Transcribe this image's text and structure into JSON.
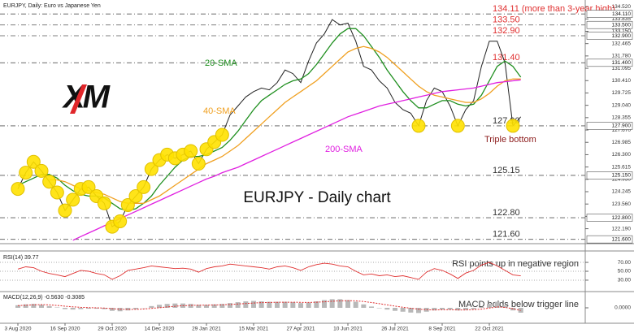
{
  "header": "EURJPY, Daily: Euro vs Japanese Yen",
  "logo": "XM",
  "chart_data": [
    {
      "type": "line",
      "title": "EURJPY - Daily chart",
      "categories": [
        "3 Aug 2020",
        null,
        null,
        null,
        null,
        null,
        "16 Sep 2020",
        null,
        null,
        null,
        null,
        null,
        "29 Oct 2020",
        null,
        null,
        null,
        null,
        null,
        "14 Dec 2020",
        null,
        null,
        null,
        null,
        null,
        "29 Jan 2021",
        null,
        null,
        null,
        null,
        null,
        "15 Mar 2021",
        null,
        null,
        null,
        null,
        null,
        "27 Apr 2021",
        null,
        null,
        null,
        null,
        null,
        "10 Jun 2021",
        null,
        null,
        null,
        null,
        null,
        "26 Jul 2021",
        null,
        null,
        null,
        null,
        null,
        "8 Sep 2021",
        null,
        null,
        null,
        null,
        null,
        "22 Oct 2021",
        null,
        null,
        null,
        null
      ],
      "series": [
        {
          "color": "#222222",
          "values": [
            124.4,
            125.3,
            125.9,
            125.4,
            124.8,
            124.2,
            123.2,
            123.8,
            124.4,
            124.5,
            124.0,
            123.6,
            122.3,
            122.6,
            123.5,
            124.0,
            124.5,
            125.5,
            126.0,
            126.3,
            126.1,
            126.3,
            126.5,
            125.8,
            126.6,
            127.0,
            127.4,
            128.5,
            129.0,
            129.5,
            129.8,
            130.0,
            129.9,
            130.3,
            131.0,
            130.8,
            130.3,
            131.5,
            132.5,
            133.0,
            133.8,
            133.5,
            133.6,
            132.6,
            131.2,
            131.0,
            130.4,
            130.0,
            129.2,
            128.8,
            128.6,
            127.9,
            129.3,
            130.0,
            129.8,
            129.0,
            127.9,
            128.8,
            129.3,
            131.2,
            132.6,
            132.6,
            131.4,
            127.9,
            128.4
          ]
        },
        {
          "name": "20-SMA",
          "color": "#1f8f1f",
          "values": [
            124.6,
            124.8,
            125.0,
            125.2,
            125.2,
            125.0,
            124.6,
            124.3,
            124.1,
            124.0,
            124.0,
            123.9,
            123.6,
            123.3,
            123.2,
            123.3,
            123.6,
            124.0,
            124.6,
            125.1,
            125.6,
            126.0,
            126.2,
            126.2,
            126.3,
            126.5,
            126.7,
            127.1,
            127.6,
            128.2,
            128.8,
            129.3,
            129.6,
            129.9,
            130.2,
            130.4,
            130.5,
            130.8,
            131.3,
            131.9,
            132.5,
            133.0,
            133.3,
            133.3,
            132.9,
            132.3,
            131.7,
            131.0,
            130.4,
            129.8,
            129.3,
            128.9,
            128.9,
            129.1,
            129.3,
            129.3,
            129.1,
            129.0,
            129.1,
            129.6,
            130.4,
            131.2,
            131.5,
            131.2,
            130.6
          ]
        },
        {
          "name": "40-SMA",
          "color": "#f0a020",
          "values": [
            null,
            null,
            null,
            null,
            124.9,
            124.9,
            124.8,
            124.6,
            124.4,
            124.3,
            124.2,
            124.1,
            123.9,
            123.7,
            123.6,
            123.6,
            123.6,
            123.8,
            124.0,
            124.3,
            124.6,
            124.9,
            125.2,
            125.5,
            125.8,
            126.0,
            126.2,
            126.5,
            126.8,
            127.2,
            127.6,
            128.0,
            128.4,
            128.8,
            129.2,
            129.5,
            129.8,
            130.1,
            130.4,
            130.8,
            131.2,
            131.6,
            132.0,
            132.2,
            132.3,
            132.2,
            132.0,
            131.7,
            131.3,
            130.9,
            130.5,
            130.1,
            129.8,
            129.6,
            129.5,
            129.4,
            129.3,
            129.2,
            129.2,
            129.4,
            129.7,
            130.1,
            130.4,
            130.5,
            130.5
          ]
        },
        {
          "name": "200-SMA",
          "color": "#e020e0",
          "values": [
            null,
            null,
            null,
            null,
            null,
            null,
            null,
            121.55,
            121.75,
            121.95,
            122.15,
            122.35,
            122.55,
            122.75,
            122.95,
            123.15,
            123.35,
            123.55,
            123.75,
            123.95,
            124.15,
            124.35,
            124.55,
            124.75,
            124.95,
            125.1,
            125.3,
            125.45,
            125.6,
            125.8,
            126.0,
            126.2,
            126.4,
            126.6,
            126.8,
            127.0,
            127.2,
            127.4,
            127.6,
            127.8,
            128.0,
            128.2,
            128.4,
            128.55,
            128.7,
            128.85,
            129.0,
            129.1,
            129.2,
            129.3,
            129.4,
            129.5,
            129.6,
            129.7,
            129.8,
            129.85,
            129.9,
            129.95,
            130.0,
            130.1,
            130.2,
            130.3,
            130.35,
            130.4,
            130.45
          ]
        }
      ],
      "ylim": [
        121.45,
        134.75
      ],
      "yticks": [
        {
          "value": 122.19,
          "label": "122.190"
        },
        {
          "value": 122.875,
          "label": "122.875"
        },
        {
          "value": 123.56,
          "label": "123.560"
        },
        {
          "value": 124.245,
          "label": "124.245"
        },
        {
          "value": 124.93,
          "label": "124.930"
        },
        {
          "value": 125.615,
          "label": "125.615"
        },
        {
          "value": 126.3,
          "label": "126.300"
        },
        {
          "value": 126.985,
          "label": "126.985"
        },
        {
          "value": 127.67,
          "label": "127.670"
        },
        {
          "value": 128.355,
          "label": "128.355"
        },
        {
          "value": 129.04,
          "label": "129.040"
        },
        {
          "value": 129.725,
          "label": "129.725"
        },
        {
          "value": 130.41,
          "label": "130.410"
        },
        {
          "value": 131.095,
          "label": "131.095"
        },
        {
          "value": 131.78,
          "label": "131.780"
        },
        {
          "value": 132.465,
          "label": "132.465"
        },
        {
          "value": 133.15,
          "label": "133.150"
        },
        {
          "value": 133.835,
          "label": "133.835"
        },
        {
          "value": 134.52,
          "label": "134.520"
        }
      ],
      "levels": [
        {
          "value": 134.11,
          "label": "134.11 (more than 3-year high)",
          "tag": "134.110",
          "color": "#e03030"
        },
        {
          "value": 133.5,
          "label": "133.50",
          "tag": "133.500",
          "color": "#e03030"
        },
        {
          "value": 132.9,
          "label": "132.90",
          "tag": "132.900",
          "color": "#e03030"
        },
        {
          "value": 131.4,
          "label": "131.40",
          "tag": "131.400",
          "color": "#e03030"
        },
        {
          "value": 127.9,
          "label": "127.90",
          "tag": "127.900",
          "color": "#333333",
          "note": "Triple bottom"
        },
        {
          "value": 125.15,
          "label": "125.15",
          "tag": "125.150",
          "color": "#333333"
        },
        {
          "value": 122.8,
          "label": "122.80",
          "tag": "122.800",
          "color": "#333333"
        },
        {
          "value": 121.6,
          "label": "121.60",
          "tag": "121.600",
          "color": "#333333"
        }
      ]
    },
    {
      "type": "line",
      "title": "RSI(14) 39.77",
      "annotation": "RSI points up in negative region",
      "color": "#e03030",
      "values": [
        55,
        60,
        58,
        50,
        45,
        42,
        38,
        45,
        52,
        50,
        45,
        42,
        32,
        40,
        52,
        55,
        58,
        62,
        60,
        58,
        56,
        57,
        55,
        48,
        56,
        60,
        62,
        66,
        64,
        62,
        60,
        58,
        55,
        60,
        62,
        58,
        52,
        60,
        65,
        68,
        66,
        62,
        60,
        50,
        42,
        44,
        40,
        42,
        38,
        40,
        36,
        32,
        48,
        56,
        52,
        44,
        34,
        46,
        52,
        64,
        70,
        62,
        52,
        42,
        39.77
      ],
      "ylim": [
        8,
        92
      ],
      "yticks": [
        {
          "value": 70,
          "label": "70.00"
        },
        {
          "value": 50,
          "label": "50.00"
        },
        {
          "value": 30,
          "label": "30.00"
        }
      ]
    },
    {
      "type": "bar",
      "title": "MACD(12,26,9) -0.5630 -0.3085",
      "annotation": "MACD holds below trigger line",
      "series": [
        {
          "type": "bar",
          "color": "#b8b8b8",
          "values": [
            0.3,
            0.4,
            0.45,
            0.35,
            0.2,
            0.05,
            -0.15,
            -0.2,
            -0.15,
            -0.1,
            -0.1,
            -0.15,
            -0.35,
            -0.4,
            -0.3,
            -0.15,
            0.0,
            0.2,
            0.35,
            0.45,
            0.5,
            0.5,
            0.45,
            0.35,
            0.35,
            0.4,
            0.45,
            0.55,
            0.65,
            0.75,
            0.8,
            0.75,
            0.7,
            0.7,
            0.7,
            0.65,
            0.55,
            0.6,
            0.75,
            0.9,
            1.0,
            1.0,
            0.9,
            0.7,
            0.4,
            0.15,
            -0.05,
            -0.2,
            -0.35,
            -0.45,
            -0.55,
            -0.6,
            -0.45,
            -0.3,
            -0.2,
            -0.2,
            -0.3,
            -0.25,
            -0.15,
            0.1,
            0.45,
            0.7,
            0.3,
            -0.3,
            -0.563
          ]
        },
        {
          "type": "line",
          "color": "#e03030",
          "values": [
            0.25,
            0.3,
            0.35,
            0.37,
            0.34,
            0.28,
            0.19,
            0.11,
            0.06,
            0.03,
            0.0,
            -0.03,
            -0.1,
            -0.16,
            -0.19,
            -0.18,
            -0.14,
            -0.07,
            0.01,
            0.1,
            0.18,
            0.24,
            0.28,
            0.3,
            0.31,
            0.33,
            0.35,
            0.39,
            0.44,
            0.5,
            0.56,
            0.6,
            0.62,
            0.64,
            0.65,
            0.65,
            0.63,
            0.62,
            0.65,
            0.7,
            0.76,
            0.81,
            0.83,
            0.81,
            0.73,
            0.61,
            0.48,
            0.34,
            0.2,
            0.07,
            -0.05,
            -0.16,
            -0.22,
            -0.24,
            -0.23,
            -0.22,
            -0.24,
            -0.24,
            -0.22,
            -0.15,
            -0.03,
            0.1,
            0.05,
            -0.1,
            -0.3085
          ]
        }
      ],
      "ylim": [
        -1.6,
        1.6
      ],
      "yticks": [
        {
          "value": 0,
          "label": "0.0000"
        }
      ]
    }
  ]
}
